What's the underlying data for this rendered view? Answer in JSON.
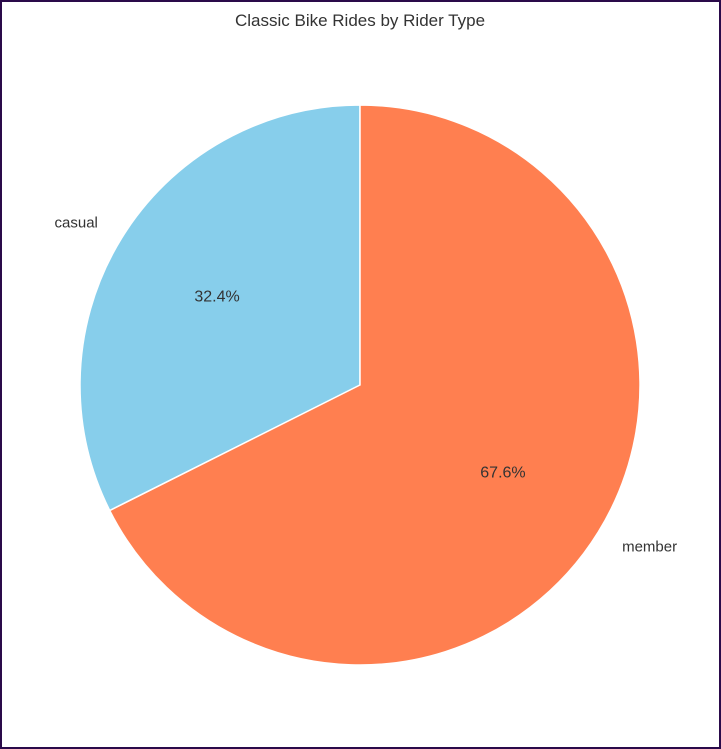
{
  "chart_data": {
    "type": "pie",
    "title": "Classic Bike Rides by Rider Type",
    "slices": [
      {
        "label": "casual",
        "value": 32.4,
        "pct_label": "32.4%",
        "color": "#87CEEB"
      },
      {
        "label": "member",
        "value": 67.6,
        "pct_label": "67.6%",
        "color": "#FF7F50"
      }
    ],
    "start_angle_deg": 90,
    "direction": "counterclockwise",
    "wedge_edge_color": "#ffffff"
  }
}
